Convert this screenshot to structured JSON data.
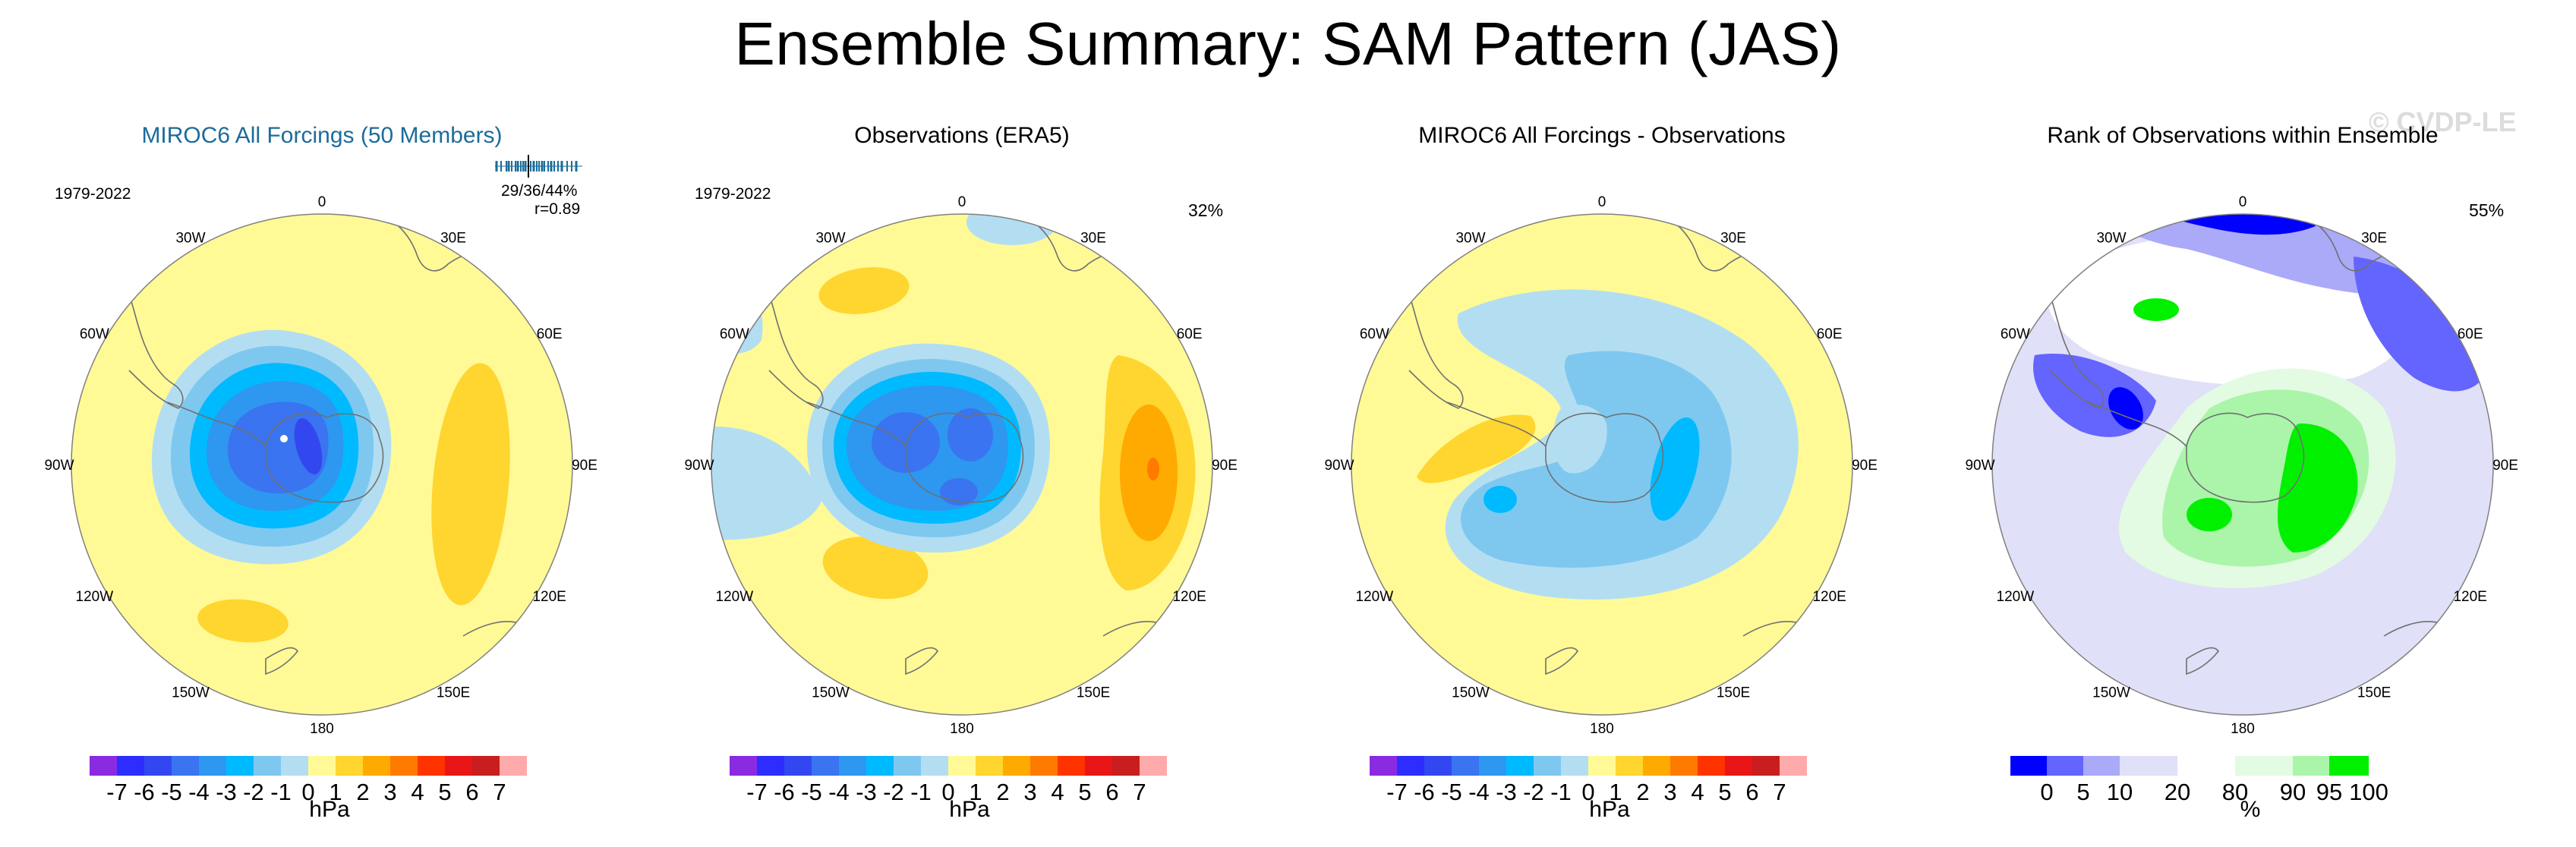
{
  "title": "Ensemble Summary: SAM Pattern (JAS)",
  "watermark": "© CVDP-LE",
  "colors": {
    "c-7": "#8a2be2",
    "c-6": "#2d2dff",
    "c-5": "#3347f0",
    "c-4": "#3a74f0",
    "c-3": "#2e97f0",
    "c-2": "#00baff",
    "c-1": "#7ec8f0",
    "c0": "#b3def2",
    "c1": "#fffa96",
    "c2": "#ffd52f",
    "c3": "#ffaa00",
    "c4": "#ff7b00",
    "c5": "#ff3300",
    "c6": "#e81616",
    "c7": "#c81e1e",
    "c8": "#ffaaaa",
    "r0": "#0000ff",
    "r5": "#6464ff",
    "r10": "#aaaaf8",
    "r20": "#e0e0f8",
    "r80": "#ffffff",
    "r90": "#e3fbe3",
    "r95": "#aaf5aa",
    "r100": "#00f000",
    "land": "#707070",
    "ring": "#808080"
  },
  "panels": [
    {
      "title": "MIROC6 All Forcings (50 Members)",
      "period": "1979-2022",
      "stats": "29/36/44%",
      "corr": "r=0.89",
      "units": "hPa"
    },
    {
      "title": "Observations (ERA5)",
      "period": "1979-2022",
      "percent": "32%",
      "units": "hPa"
    },
    {
      "title": "MIROC6 All Forcings - Observations",
      "units": "hPa"
    },
    {
      "title": "Rank of Observations within Ensemble",
      "percent": "55%",
      "units": "%"
    }
  ],
  "lon_labels": {
    "l0": "0",
    "l30e": "30E",
    "l60e": "60E",
    "l90e": "90E",
    "l120e": "120E",
    "l150e": "150E",
    "l180": "180",
    "l150w": "150W",
    "l120w": "120W",
    "l90w": "90W",
    "l60w": "60W",
    "l30w": "30W"
  },
  "chart_data": [
    {
      "type": "heatmap",
      "title": "MIROC6 All Forcings (50 Members)",
      "projection": "south polar stereographic",
      "units": "hPa",
      "colorbar_levels": [
        -7,
        -6,
        -5,
        -4,
        -3,
        -2,
        -1,
        0,
        1,
        2,
        3,
        4,
        5,
        6,
        7
      ],
      "features": {
        "center_min_hPa": -5,
        "east_high_hPa": 2,
        "south_high_hPa": 2
      }
    },
    {
      "type": "heatmap",
      "title": "Observations (ERA5)",
      "projection": "south polar stereographic",
      "units": "hPa",
      "colorbar_levels": [
        -7,
        -6,
        -5,
        -4,
        -3,
        -2,
        -1,
        0,
        1,
        2,
        3,
        4,
        5,
        6,
        7
      ],
      "features": {
        "center_min_hPa": -4,
        "east_high_hPa": 4,
        "southwest_high_hPa": 2,
        "northeast_high_hPa": 2
      }
    },
    {
      "type": "heatmap",
      "title": "MIROC6 All Forcings - Observations",
      "projection": "south polar stereographic",
      "units": "hPa",
      "colorbar_levels": [
        -7,
        -6,
        -5,
        -4,
        -3,
        -2,
        -1,
        0,
        1,
        2,
        3,
        4,
        5,
        6,
        7
      ],
      "features": {
        "min_hPa": -2,
        "west_high_hPa": 2
      }
    },
    {
      "type": "heatmap",
      "title": "Rank of Observations within Ensemble",
      "projection": "south polar stereographic",
      "units": "%",
      "colorbar_levels": [
        0,
        5,
        10,
        20,
        80,
        90,
        95,
        100
      ]
    }
  ]
}
